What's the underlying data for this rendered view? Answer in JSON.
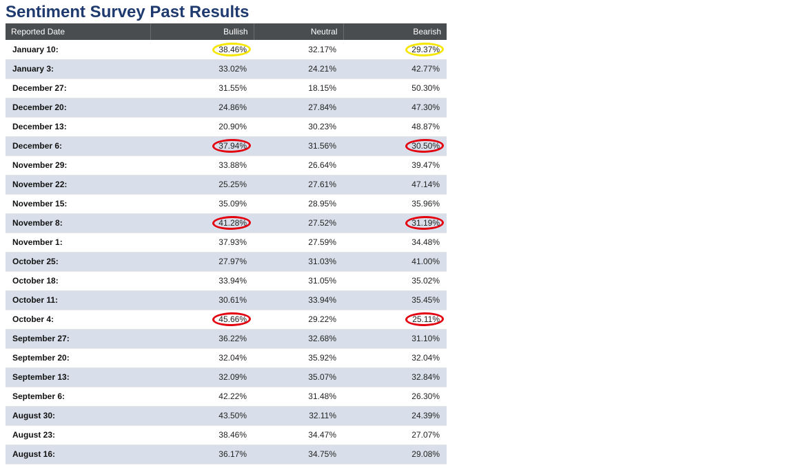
{
  "title": "Sentiment Survey Past Results",
  "columns": [
    "Reported Date",
    "Bullish",
    "Neutral",
    "Bearish"
  ],
  "colors": {
    "header_bg": "#4a4d4f",
    "header_text": "#ffffff",
    "title_text": "#1e3a6e",
    "row_even_bg": "#d9dfea",
    "row_odd_bg": "#ffffff",
    "circle_yellow": "#f7e600",
    "circle_red": "#e3000f"
  },
  "rows": [
    {
      "date": "January 10:",
      "bullish": "38.46%",
      "neutral": "32.17%",
      "bearish": "29.37%",
      "mark_bullish": "yellow",
      "mark_bearish": "yellow"
    },
    {
      "date": "January 3:",
      "bullish": "33.02%",
      "neutral": "24.21%",
      "bearish": "42.77%"
    },
    {
      "date": "December 27:",
      "bullish": "31.55%",
      "neutral": "18.15%",
      "bearish": "50.30%"
    },
    {
      "date": "December 20:",
      "bullish": "24.86%",
      "neutral": "27.84%",
      "bearish": "47.30%"
    },
    {
      "date": "December 13:",
      "bullish": "20.90%",
      "neutral": "30.23%",
      "bearish": "48.87%"
    },
    {
      "date": "December 6:",
      "bullish": "37.94%",
      "neutral": "31.56%",
      "bearish": "30.50%",
      "mark_bullish": "red",
      "mark_bearish": "red"
    },
    {
      "date": "November 29:",
      "bullish": "33.88%",
      "neutral": "26.64%",
      "bearish": "39.47%"
    },
    {
      "date": "November 22:",
      "bullish": "25.25%",
      "neutral": "27.61%",
      "bearish": "47.14%"
    },
    {
      "date": "November 15:",
      "bullish": "35.09%",
      "neutral": "28.95%",
      "bearish": "35.96%"
    },
    {
      "date": "November 8:",
      "bullish": "41.28%",
      "neutral": "27.52%",
      "bearish": "31.19%",
      "mark_bullish": "red",
      "mark_bearish": "red"
    },
    {
      "date": "November 1:",
      "bullish": "37.93%",
      "neutral": "27.59%",
      "bearish": "34.48%"
    },
    {
      "date": "October 25:",
      "bullish": "27.97%",
      "neutral": "31.03%",
      "bearish": "41.00%"
    },
    {
      "date": "October 18:",
      "bullish": "33.94%",
      "neutral": "31.05%",
      "bearish": "35.02%"
    },
    {
      "date": "October 11:",
      "bullish": "30.61%",
      "neutral": "33.94%",
      "bearish": "35.45%"
    },
    {
      "date": "October 4:",
      "bullish": "45.66%",
      "neutral": "29.22%",
      "bearish": "25.11%",
      "mark_bullish": "red",
      "mark_bearish": "red"
    },
    {
      "date": "September 27:",
      "bullish": "36.22%",
      "neutral": "32.68%",
      "bearish": "31.10%"
    },
    {
      "date": "September 20:",
      "bullish": "32.04%",
      "neutral": "35.92%",
      "bearish": "32.04%"
    },
    {
      "date": "September 13:",
      "bullish": "32.09%",
      "neutral": "35.07%",
      "bearish": "32.84%"
    },
    {
      "date": "September 6:",
      "bullish": "42.22%",
      "neutral": "31.48%",
      "bearish": "26.30%"
    },
    {
      "date": "August 30:",
      "bullish": "43.50%",
      "neutral": "32.11%",
      "bearish": "24.39%"
    },
    {
      "date": "August 23:",
      "bullish": "38.46%",
      "neutral": "34.47%",
      "bearish": "27.07%"
    },
    {
      "date": "August 16:",
      "bullish": "36.17%",
      "neutral": "34.75%",
      "bearish": "29.08%"
    }
  ]
}
